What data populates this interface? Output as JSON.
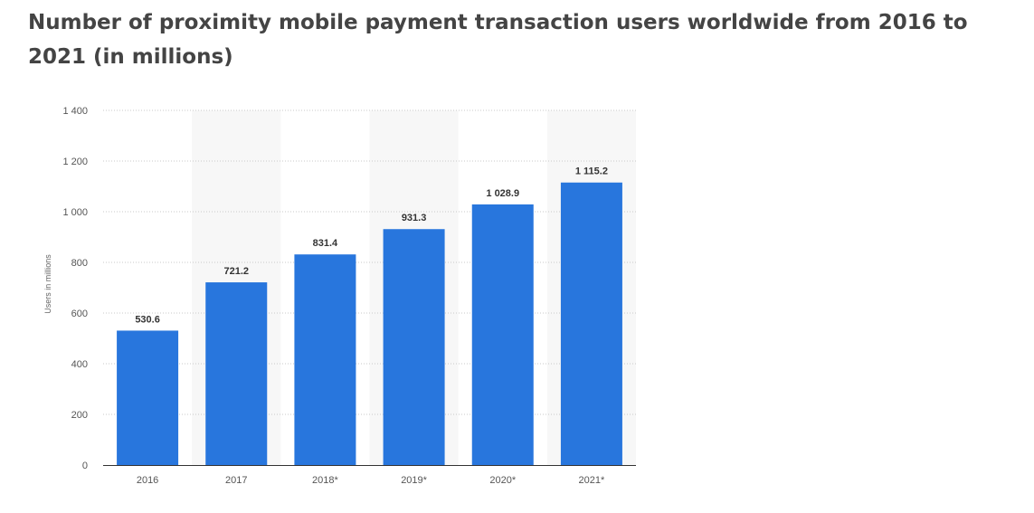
{
  "page": {
    "title": "Number of proximity mobile payment transaction users worldwide from 2016 to 2021 (in millions)"
  },
  "chart_data": {
    "type": "bar",
    "title": "Number of proximity mobile payment transaction users worldwide from 2016 to 2021 (in millions)",
    "xlabel": "",
    "ylabel": "Users in millions",
    "categories": [
      "2016",
      "2017",
      "2018*",
      "2019*",
      "2020*",
      "2021*"
    ],
    "values": [
      530.6,
      721.2,
      831.4,
      931.3,
      1028.9,
      1115.2
    ],
    "data_labels": [
      "530.6",
      "721.2",
      "831.4",
      "931.3",
      "1 028.9",
      "1 115.2"
    ],
    "ylim": [
      0,
      1400
    ],
    "yticks": [
      0,
      200,
      400,
      600,
      800,
      1000,
      1200,
      1400
    ],
    "ytick_labels": [
      "0",
      "200",
      "400",
      "600",
      "800",
      "1 000",
      "1 200",
      "1 400"
    ],
    "grid": true,
    "legend": "none",
    "colors": {
      "bar": "#2876dd",
      "grid": "#c8c8c8",
      "band": "#f7f7f7",
      "axis": "#333333"
    }
  }
}
